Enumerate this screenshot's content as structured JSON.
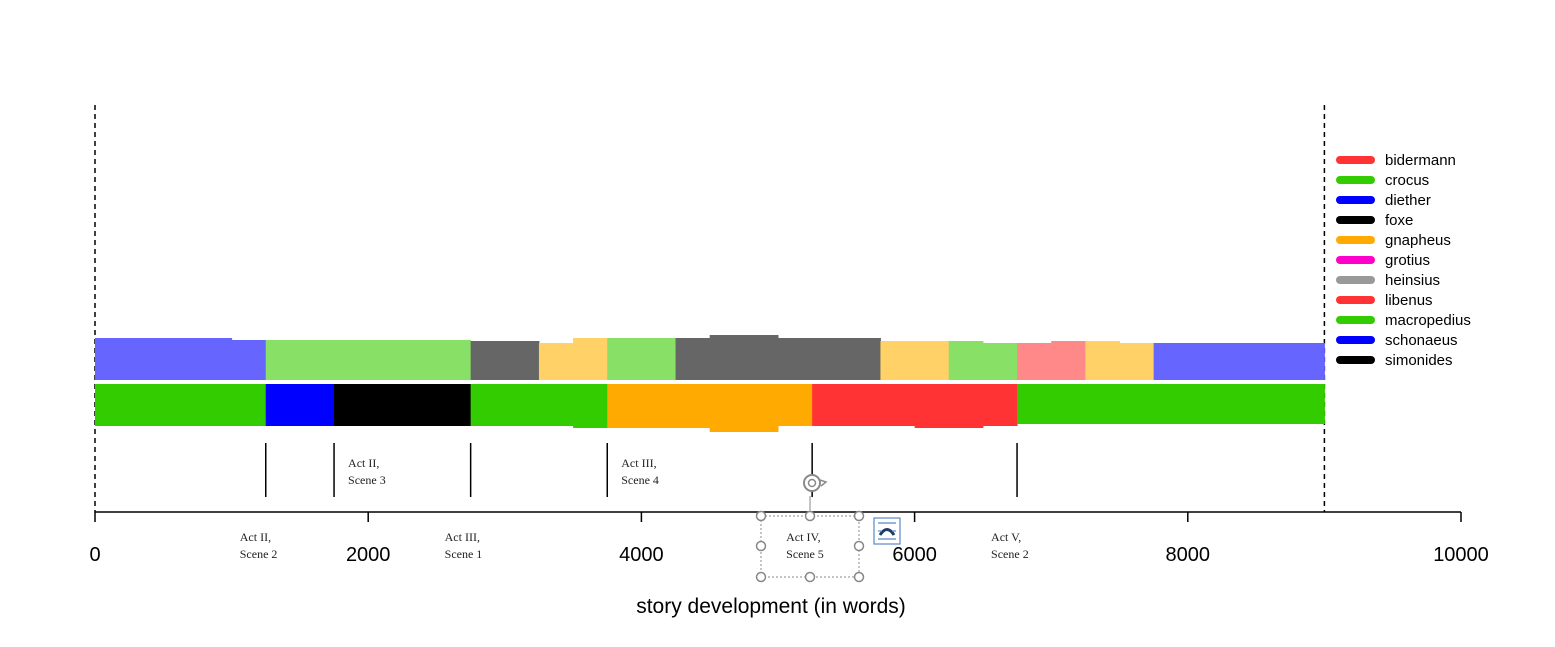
{
  "chart_data": {
    "type": "area",
    "xlabel": "story development (in words)",
    "xlim": [
      0,
      10000
    ],
    "ticks": [
      {
        "value": 0,
        "label": "0"
      },
      {
        "value": 2000,
        "label": "2000"
      },
      {
        "value": 4000,
        "label": "4000"
      },
      {
        "value": 6000,
        "label": "6000"
      },
      {
        "value": 8000,
        "label": "8000"
      },
      {
        "value": 10000,
        "label": "10000"
      }
    ],
    "story_bounds": [
      0,
      9000
    ],
    "legend": [
      {
        "name": "bidermann",
        "color": "#ff3333"
      },
      {
        "name": "crocus",
        "color": "#33cc00"
      },
      {
        "name": "diether",
        "color": "#0000ff"
      },
      {
        "name": "foxe",
        "color": "#000000"
      },
      {
        "name": "gnapheus",
        "color": "#ffaa00"
      },
      {
        "name": "grotius",
        "color": "#ff00cc"
      },
      {
        "name": "heinsius",
        "color": "#999999"
      },
      {
        "name": "libenus",
        "color": "#ff3333"
      },
      {
        "name": "macropedius",
        "color": "#33cc00"
      },
      {
        "name": "schonaeus",
        "color": "#0000ff"
      },
      {
        "name": "simonides",
        "color": "#000000"
      }
    ],
    "upper_stream": [
      {
        "start": 0,
        "end": 1000,
        "color": "#6666ff",
        "value": 42
      },
      {
        "start": 1000,
        "end": 1250,
        "color": "#6666ff",
        "value": 40
      },
      {
        "start": 1250,
        "end": 2750,
        "color": "#88e066",
        "value": 40
      },
      {
        "start": 2750,
        "end": 3250,
        "color": "#666666",
        "value": 39
      },
      {
        "start": 3250,
        "end": 3500,
        "color": "#ffd166",
        "value": 37
      },
      {
        "start": 3500,
        "end": 3750,
        "color": "#ffd166",
        "value": 42
      },
      {
        "start": 3750,
        "end": 4250,
        "color": "#88e066",
        "value": 42
      },
      {
        "start": 4250,
        "end": 4500,
        "color": "#666666",
        "value": 42
      },
      {
        "start": 4500,
        "end": 5000,
        "color": "#666666",
        "value": 45
      },
      {
        "start": 5000,
        "end": 5500,
        "color": "#666666",
        "value": 42
      },
      {
        "start": 5500,
        "end": 5750,
        "color": "#666666",
        "value": 42
      },
      {
        "start": 5750,
        "end": 6250,
        "color": "#ffd166",
        "value": 39
      },
      {
        "start": 6250,
        "end": 6500,
        "color": "#88e066",
        "value": 39
      },
      {
        "start": 6500,
        "end": 6750,
        "color": "#88e066",
        "value": 37
      },
      {
        "start": 6750,
        "end": 7000,
        "color": "#ff8888",
        "value": 37
      },
      {
        "start": 7000,
        "end": 7250,
        "color": "#ff8888",
        "value": 39
      },
      {
        "start": 7250,
        "end": 7500,
        "color": "#ffd166",
        "value": 39
      },
      {
        "start": 7500,
        "end": 7750,
        "color": "#ffd166",
        "value": 37
      },
      {
        "start": 7750,
        "end": 9000,
        "color": "#6666ff",
        "value": 37
      }
    ],
    "lower_stream": [
      {
        "start": 0,
        "end": 1250,
        "color": "#33cc00",
        "value": 42
      },
      {
        "start": 1250,
        "end": 1750,
        "color": "#0000ff",
        "value": 42
      },
      {
        "start": 1750,
        "end": 2750,
        "color": "#000000",
        "value": 42
      },
      {
        "start": 2750,
        "end": 3500,
        "color": "#33cc00",
        "value": 42
      },
      {
        "start": 3500,
        "end": 3750,
        "color": "#33cc00",
        "value": 44
      },
      {
        "start": 3750,
        "end": 4500,
        "color": "#ffaa00",
        "value": 44
      },
      {
        "start": 4500,
        "end": 5000,
        "color": "#ffaa00",
        "value": 48
      },
      {
        "start": 5000,
        "end": 5250,
        "color": "#ffaa00",
        "value": 42
      },
      {
        "start": 5250,
        "end": 6000,
        "color": "#ff3333",
        "value": 42
      },
      {
        "start": 6000,
        "end": 6500,
        "color": "#ff3333",
        "value": 44
      },
      {
        "start": 6500,
        "end": 6750,
        "color": "#ff3333",
        "value": 42
      },
      {
        "start": 6750,
        "end": 9000,
        "color": "#33cc00",
        "value": 40
      }
    ],
    "scene_markers": [
      {
        "x": 1250,
        "label": [
          "Act II,",
          "Scene 2"
        ],
        "position": "below"
      },
      {
        "x": 1750,
        "label": [
          "Act II,",
          "Scene 3"
        ],
        "position": "above"
      },
      {
        "x": 2750,
        "label": [
          "Act III,",
          "Scene 1"
        ],
        "position": "below"
      },
      {
        "x": 3750,
        "label": [
          "Act III,",
          "Scene 4"
        ],
        "position": "above"
      },
      {
        "x": 5250,
        "label": [
          "Act IV,",
          "Scene 5"
        ],
        "position": "below"
      },
      {
        "x": 6750,
        "label": [
          "Act V,",
          "Scene 2"
        ],
        "position": "below"
      }
    ]
  }
}
